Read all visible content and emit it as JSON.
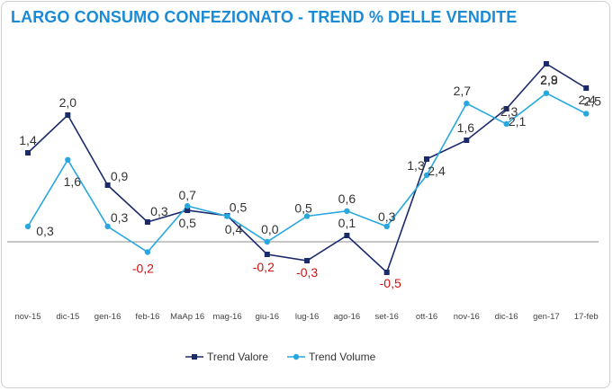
{
  "colors": {
    "title": "#1b8bd6",
    "valore": "#1b2a6b",
    "volume": "#29a8df",
    "label": "#333333",
    "negative": "#d01010",
    "baseline": "#8c8c8c"
  },
  "chart_data": {
    "type": "line",
    "title": "LARGO CONSUMO CONFEZIONATO - TREND % DELLE VENDITE",
    "categories": [
      "nov-15",
      "dic-15",
      "gen-16",
      "feb-16",
      "MaAp 16",
      "mag-16",
      "giu-16",
      "lug-16",
      "ago-16",
      "set-16",
      "ott-16",
      "nov-16",
      "dic-16",
      "gen-17",
      "17-feb"
    ],
    "series": [
      {
        "name": "Trend Valore",
        "values": [
          1.4,
          2.0,
          0.9,
          0.3,
          0.5,
          0.4,
          -0.2,
          -0.3,
          0.1,
          -0.5,
          2.4,
          1.6,
          2.1,
          2.8,
          2.4
        ],
        "labels": [
          "1,4",
          "2,0",
          "0,9",
          "0,3",
          "0,5",
          "0,4",
          "-0,2",
          "-0,3",
          "0,1",
          "-0,5",
          "2,4",
          "1,6",
          "2,1",
          "2,8",
          "2,4"
        ],
        "marker": "square"
      },
      {
        "name": "Trend Volume",
        "values": [
          0.3,
          1.6,
          0.3,
          -0.2,
          0.7,
          0.5,
          0.0,
          0.5,
          0.6,
          0.3,
          1.3,
          2.7,
          2.3,
          2.9,
          2.5
        ],
        "labels": [
          "0,3",
          "1,6",
          "0,3",
          "-0,2",
          "0,7",
          "0,5",
          "0,0",
          "0,5",
          "0,6",
          "0,3",
          "1,3",
          "2,7",
          "2,3",
          "2,9",
          "2,5"
        ],
        "marker": "circle"
      }
    ],
    "note": "The Trend Valore series' plotted points do not follow a single linear scale; points are drawn at the observed positions, while values reflect the printed data labels.",
    "grid": false,
    "zero_line": true,
    "legend_position": "bottom-center"
  }
}
